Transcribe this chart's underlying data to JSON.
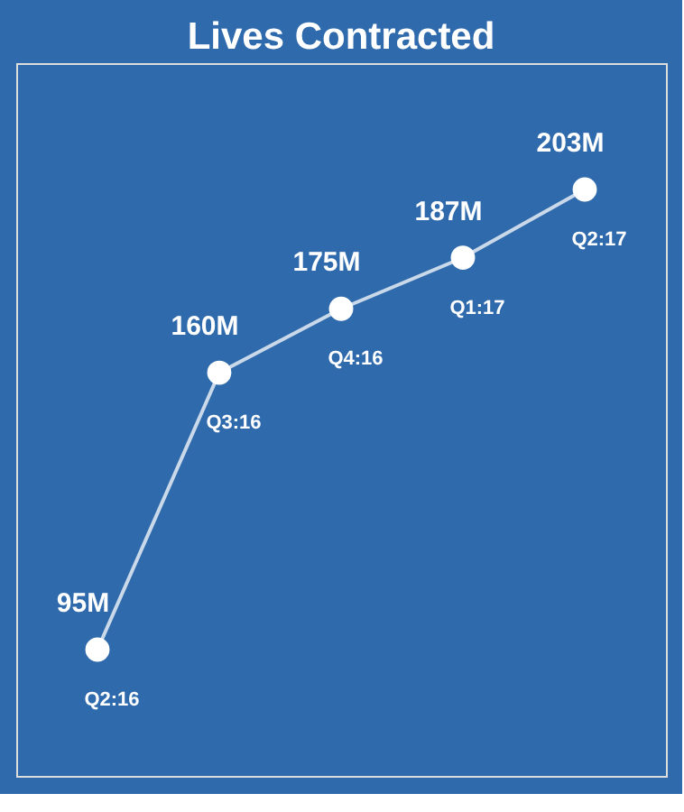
{
  "chart_data": {
    "type": "line",
    "title": "Lives Contracted",
    "categories": [
      "Q2:16",
      "Q3:16",
      "Q4:16",
      "Q1:17",
      "Q2:17"
    ],
    "series": [
      {
        "color": "#ffffff",
        "values": [
          95,
          160,
          175,
          187,
          203
        ],
        "value_labels": [
          "95M",
          "160M",
          "175M",
          "187M",
          "203M"
        ]
      }
    ],
    "marker": "circle",
    "grid": false,
    "legend": false,
    "tick_labels": false
  }
}
